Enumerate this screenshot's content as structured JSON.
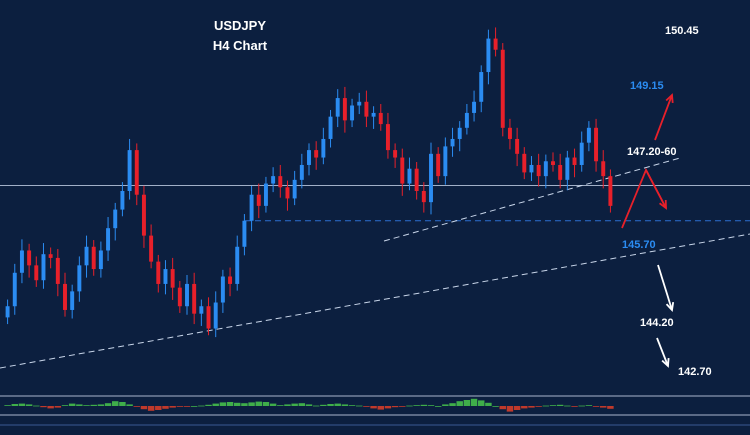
{
  "title": "USDJPY",
  "subtitle": "H4 Chart",
  "colors": {
    "background": "#0c1f3f",
    "bull": "#2b8cf2",
    "bear": "#e8202a",
    "label_white": "#ffffff",
    "label_blue": "#2b8cf2",
    "arrow_red": "#e8202a",
    "arrow_white": "#ffffff",
    "trendline": "#c9d6ea",
    "support": "#2b6fd0",
    "osc_up": "#3fae4a",
    "osc_down": "#c0392b"
  },
  "chart_data": {
    "type": "candlestick",
    "title": "USDJPY",
    "subtitle": "H4 Chart",
    "ylim": [
      142.0,
      151.2
    ],
    "grid": false,
    "price_levels": [
      {
        "value": 150.45,
        "label": "150.45",
        "color": "white"
      },
      {
        "value": 149.15,
        "label": "149.15",
        "color": "blue"
      },
      {
        "value": 147.4,
        "label": "147.20-60",
        "color": "white"
      },
      {
        "value": 145.7,
        "label": "145.70",
        "color": "blue"
      },
      {
        "value": 144.2,
        "label": "144.20",
        "color": "white"
      },
      {
        "value": 142.7,
        "label": "142.70",
        "color": "white"
      }
    ],
    "horizontal_line": 146.75,
    "support_line": 145.8,
    "close_series": [
      143.5,
      144.4,
      145.0,
      144.6,
      144.2,
      144.9,
      144.8,
      144.1,
      143.4,
      143.9,
      144.6,
      145.1,
      144.5,
      145.0,
      145.6,
      146.1,
      146.6,
      147.7,
      146.5,
      145.4,
      144.7,
      144.1,
      144.5,
      144.0,
      143.5,
      144.1,
      143.3,
      143.5,
      142.9,
      143.6,
      144.3,
      144.1,
      145.1,
      145.8,
      146.5,
      146.2,
      146.8,
      147.0,
      146.7,
      146.4,
      146.9,
      147.3,
      147.7,
      147.5,
      148.0,
      148.6,
      149.1,
      148.5,
      148.9,
      149.0,
      148.6,
      148.7,
      148.4,
      147.7,
      147.5,
      146.8,
      147.2,
      146.6,
      146.3,
      147.6,
      147.0,
      147.8,
      148.0,
      148.3,
      148.7,
      149.0,
      149.8,
      150.7,
      150.4,
      148.3,
      148.0,
      147.6,
      147.1,
      147.3,
      147.0,
      147.4,
      147.3,
      146.9,
      147.5,
      147.3,
      147.9,
      148.3,
      147.4,
      147.0,
      146.2
    ],
    "oscillator": [
      0.1,
      0.25,
      0.3,
      0.2,
      0.05,
      -0.15,
      -0.3,
      -0.2,
      0.1,
      0.3,
      0.2,
      0.1,
      0.15,
      0.2,
      0.35,
      0.6,
      0.5,
      0.2,
      -0.1,
      -0.4,
      -0.6,
      -0.5,
      -0.35,
      -0.2,
      -0.1,
      -0.05,
      0.0,
      0.05,
      0.15,
      0.3,
      0.45,
      0.5,
      0.4,
      0.35,
      0.45,
      0.55,
      0.5,
      0.3,
      0.1,
      0.2,
      0.3,
      0.35,
      0.2,
      0.05,
      0.15,
      0.25,
      0.3,
      0.2,
      0.1,
      0.05,
      -0.1,
      -0.3,
      -0.45,
      -0.3,
      -0.15,
      -0.1,
      0.05,
      0.1,
      0.15,
      0.1,
      0.0,
      0.2,
      0.35,
      0.6,
      0.75,
      0.9,
      0.7,
      0.4,
      0.0,
      -0.4,
      -0.7,
      -0.5,
      -0.3,
      -0.2,
      -0.1,
      0.05,
      0.1,
      0.15,
      0.05,
      -0.05,
      0.05,
      0.1,
      -0.05,
      -0.2,
      -0.35
    ]
  }
}
